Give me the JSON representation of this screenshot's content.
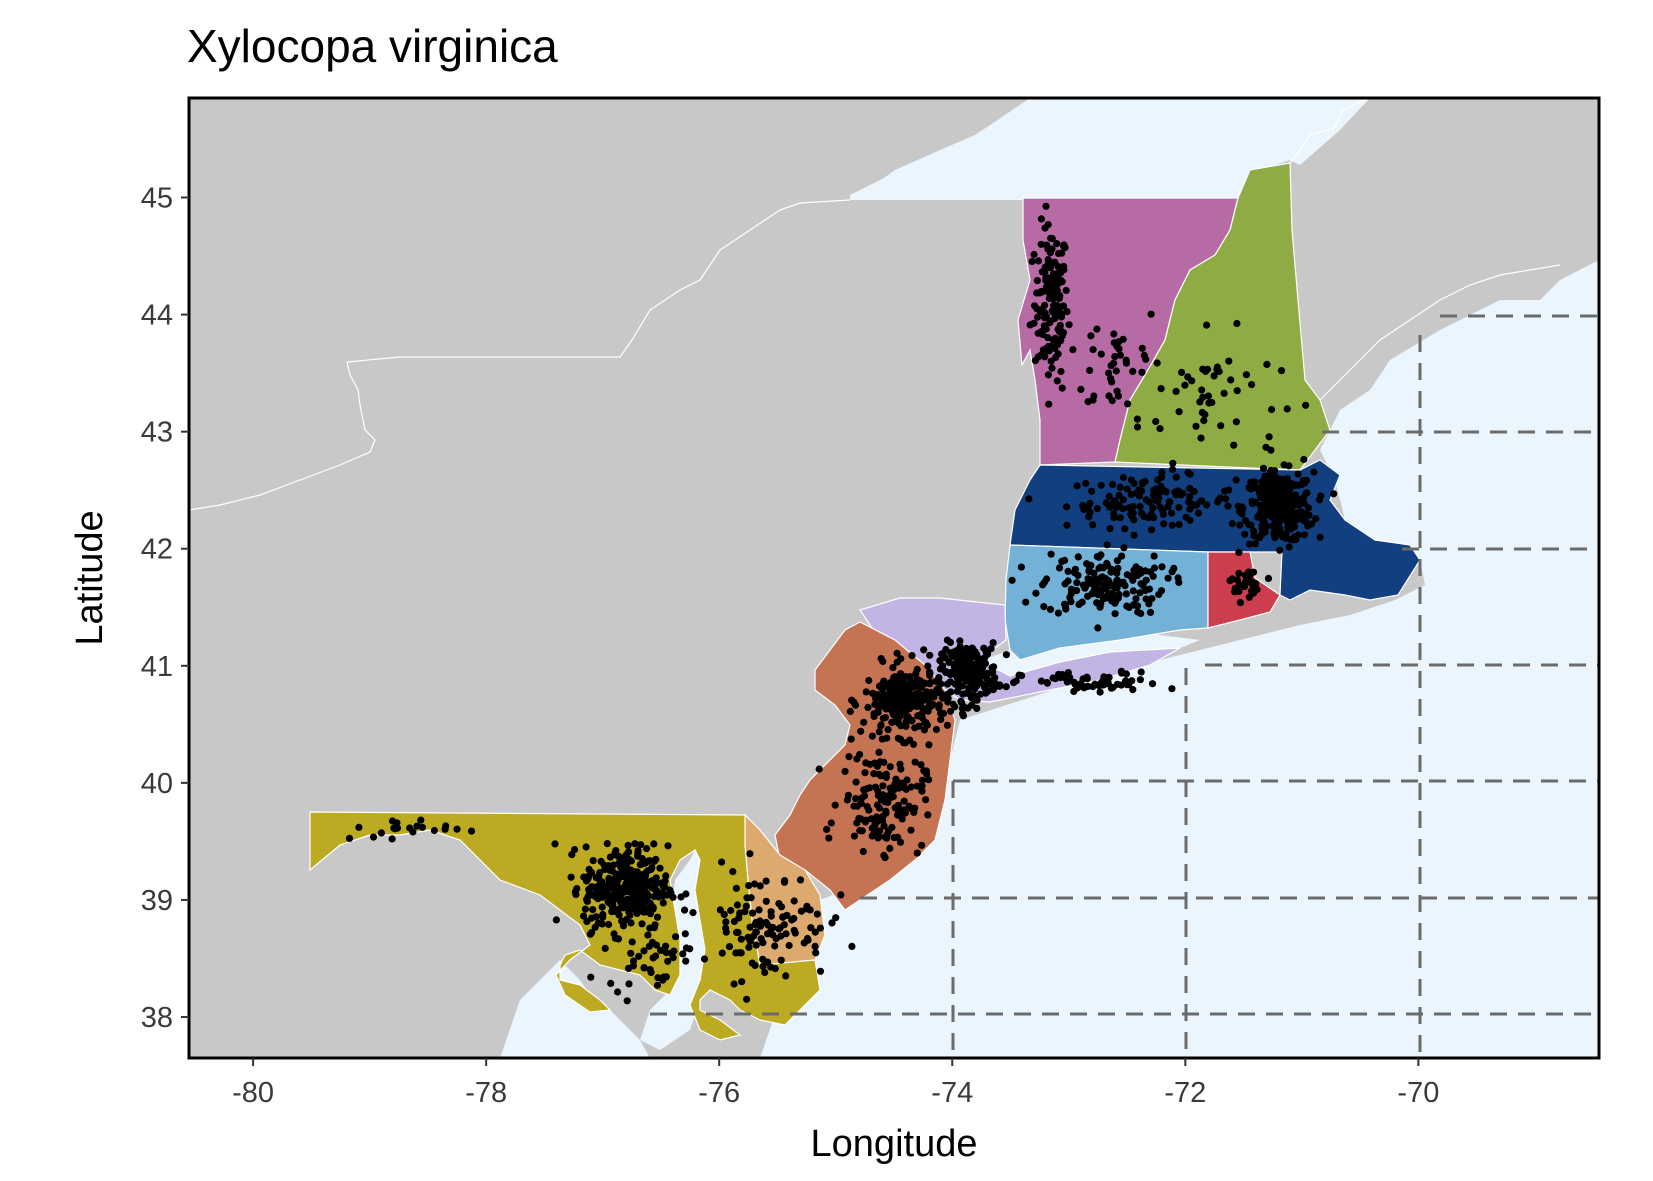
{
  "map": {
    "title": "Xylocopa virginica",
    "x_axis_title": "Longitude",
    "y_axis_title": "Latitude",
    "x_ticks": [
      -80,
      -78,
      -76,
      -74,
      -72,
      -70
    ],
    "y_ticks": [
      38,
      39,
      40,
      41,
      42,
      43,
      44,
      45
    ],
    "x_range": [
      -80.55,
      -68.45
    ],
    "y_range": [
      37.65,
      45.85
    ],
    "colors": {
      "land": "#c8c8c8",
      "water": "#eaf5fd",
      "points": "#000000",
      "gridlines": "#6b6b6b",
      "Vermont": "#b76ba4",
      "New Hampshire": "#8fab44",
      "Massachusetts": "#113f80",
      "Connecticut": "#74b1d6",
      "Rhode Island": "#cc3d4d",
      "New York": "#c2b5e6",
      "New Jersey": "#c57453",
      "Maryland": "#bcaa22",
      "Delaware": "#dcaa6e"
    },
    "highlighted_states": [
      "Vermont",
      "New Hampshire",
      "Massachusetts",
      "Connecticut",
      "Rhode Island",
      "New York",
      "New Jersey",
      "Maryland",
      "Delaware"
    ],
    "point_marker": "filled-circle",
    "occurrence_clusters": [
      {
        "lon": -73.15,
        "lat": 44.1,
        "spread": [
          0.12,
          0.55
        ],
        "count": 140
      },
      {
        "lon": -72.6,
        "lat": 43.6,
        "spread": [
          0.35,
          0.45
        ],
        "count": 40
      },
      {
        "lon": -71.8,
        "lat": 43.3,
        "spread": [
          0.5,
          0.45
        ],
        "count": 50
      },
      {
        "lon": -72.3,
        "lat": 42.4,
        "spread": [
          0.6,
          0.18
        ],
        "count": 120
      },
      {
        "lon": -71.2,
        "lat": 42.35,
        "spread": [
          0.25,
          0.25
        ],
        "count": 300
      },
      {
        "lon": -72.7,
        "lat": 41.7,
        "spread": [
          0.45,
          0.22
        ],
        "count": 160
      },
      {
        "lon": -71.5,
        "lat": 41.7,
        "spread": [
          0.1,
          0.12
        ],
        "count": 25
      },
      {
        "lon": -72.8,
        "lat": 40.85,
        "spread": [
          0.5,
          0.08
        ],
        "count": 60
      },
      {
        "lon": -73.85,
        "lat": 40.95,
        "spread": [
          0.2,
          0.2
        ],
        "count": 200
      },
      {
        "lon": -74.4,
        "lat": 40.7,
        "spread": [
          0.3,
          0.25
        ],
        "count": 260
      },
      {
        "lon": -74.6,
        "lat": 39.85,
        "spread": [
          0.3,
          0.35
        ],
        "count": 140
      },
      {
        "lon": -76.8,
        "lat": 39.1,
        "spread": [
          0.3,
          0.3
        ],
        "count": 320
      },
      {
        "lon": -78.6,
        "lat": 39.6,
        "spread": [
          0.55,
          0.08
        ],
        "count": 20
      },
      {
        "lon": -75.6,
        "lat": 38.8,
        "spread": [
          0.45,
          0.4
        ],
        "count": 110
      },
      {
        "lon": -76.6,
        "lat": 38.5,
        "spread": [
          0.3,
          0.2
        ],
        "count": 40
      }
    ]
  }
}
